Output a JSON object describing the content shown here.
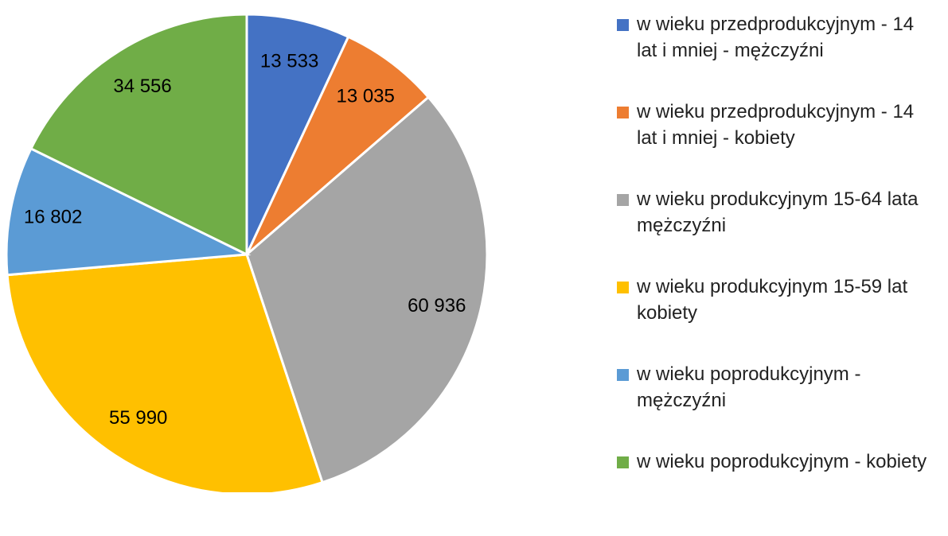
{
  "chart_data": {
    "type": "pie",
    "categories": [
      "w wieku przedprodukcyjnym - 14 lat i mniej - mężczyźni",
      "w wieku przedprodukcyjnym - 14 lat i mniej - kobiety",
      "w wieku produkcyjnym 15-64 lata mężczyźni",
      "w wieku produkcyjnym 15-59 lat kobiety",
      "w wieku poprodukcyjnym - mężczyźni",
      "w wieku poprodukcyjnym - kobiety"
    ],
    "values": [
      13533,
      13035,
      60936,
      55990,
      16802,
      34556
    ],
    "value_labels": [
      "13 533",
      "13 035",
      "60 936",
      "55 990",
      "16 802",
      "34 556"
    ],
    "colors": [
      "#4472c4",
      "#ed7d31",
      "#a5a5a5",
      "#ffc000",
      "#5b9bd5",
      "#70ad47"
    ],
    "legend": "right"
  }
}
